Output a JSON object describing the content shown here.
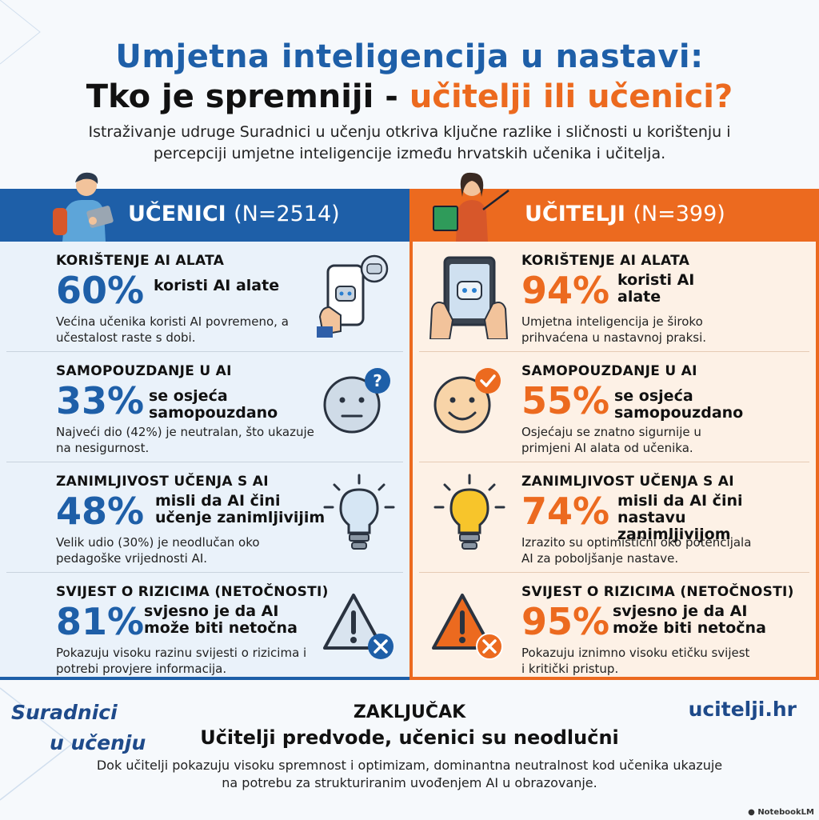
{
  "header": {
    "title_line1": "Umjetna inteligencija u nastavi:",
    "title_line2_prefix": "Tko je spremniji - ",
    "title_line2_accent": "učitelji ili učenici?",
    "intro": "Istraživanje udruge Suradnici u učenju otkriva ključne razlike i sličnosti u korištenju i percepciji umjetne inteligencije između hrvatskih učenika i učitelja."
  },
  "students": {
    "label": "UČENICI",
    "n": "(N=2514)",
    "sections": [
      {
        "title": "KORIŠTENJE AI ALATA",
        "pct": "60%",
        "caption": "koristi AI alate",
        "desc": "Većina učenika koristi AI povremeno, a učestalost raste s dobi.",
        "icon": "phone-robot-icon"
      },
      {
        "title": "SAMOPOUZDANJE U AI",
        "pct": "33%",
        "caption": "se osjeća samopouzdano",
        "desc": "Najveći dio (42%) je neutralan, što ukazuje na nesigurnost.",
        "icon": "neutral-face-question-icon"
      },
      {
        "title": "ZANIMLJIVOST UČENJA S AI",
        "pct": "48%",
        "caption": "misli da AI čini učenje zanimljivijim",
        "desc": "Velik udio (30%) je neodlučan oko pedagoške vrijednosti AI.",
        "icon": "lightbulb-off-icon"
      },
      {
        "title": "SVIJEST O RIZICIMA (NETOČNOSTI)",
        "pct": "81%",
        "caption": "svjesno je da AI može biti netočna",
        "desc": "Pokazuju visoku razinu svijesti o rizicima i potrebi provjere informacija.",
        "icon": "warning-triangle-icon"
      }
    ]
  },
  "teachers": {
    "label": "UČITELJI",
    "n": "(N=399)",
    "sections": [
      {
        "title": "KORIŠTENJE AI ALATA",
        "pct": "94%",
        "caption": "koristi AI alate",
        "desc": "Umjetna inteligencija je široko prihvaćena u nastavnoj praksi.",
        "icon": "tablet-robot-icon"
      },
      {
        "title": "SAMOPOUZDANJE U AI",
        "pct": "55%",
        "caption": "se osjeća samopouzdano",
        "desc": "Osjećaju se znatno sigurnije u primjeni AI alata od učenika.",
        "icon": "smiley-check-icon"
      },
      {
        "title": "ZANIMLJIVOST UČENJA S AI",
        "pct": "74%",
        "caption": "misli da AI čini nastavu zanimljivijom",
        "desc": "Izrazito su optimistični oko potencijala AI za poboljšanje nastave.",
        "icon": "lightbulb-on-icon"
      },
      {
        "title": "SVIJEST O RIZICIMA (NETOČNOSTI)",
        "pct": "95%",
        "caption": "svjesno je da AI može biti netočna",
        "desc": "Pokazuju iznimno visoku etičku svijest i kritički pristup.",
        "icon": "warning-triangle-icon"
      }
    ]
  },
  "footer": {
    "brand_line1": "Suradnici",
    "brand_line2": "u učenju",
    "site": "ucitelji.hr",
    "conclusion_label": "ZAKLJUČAK",
    "conclusion_head": "Učitelji predvode, učenici su neodlučni",
    "conclusion_text": "Dok učitelji pokazuju visoku spremnost i optimizam, dominantna neutralnost kod učenika ukazuje na potrebu za strukturiranim uvođenjem AI u obrazovanje.",
    "credit": "NotebookLM"
  },
  "colors": {
    "blue": "#1e5fa8",
    "orange": "#ec6a1f"
  }
}
